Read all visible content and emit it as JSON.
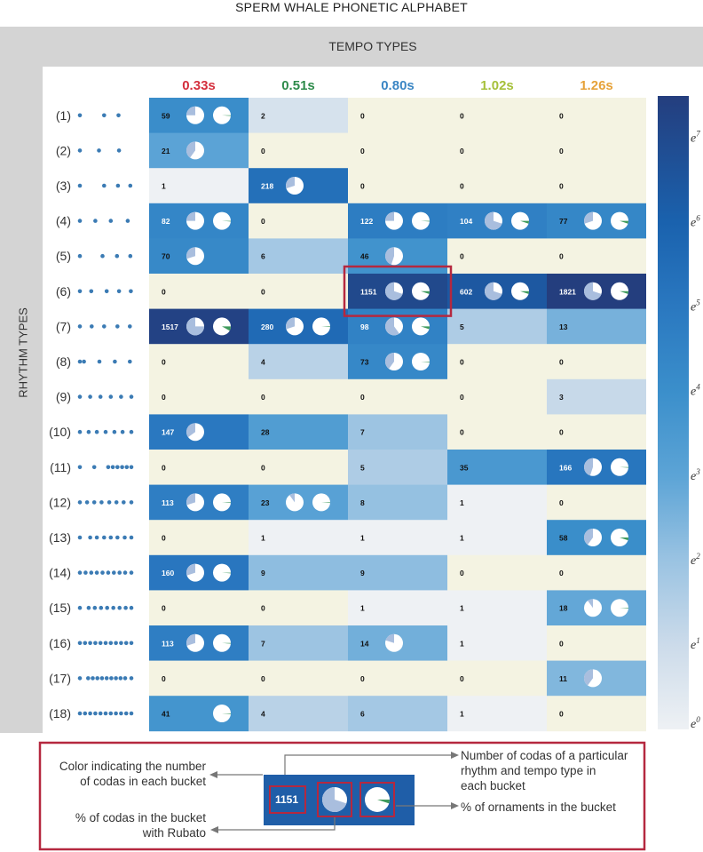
{
  "page_title": "SPERM WHALE PHONETIC ALPHABET",
  "colors": {
    "background_panel": "#d4d4d4",
    "empty_cell": "#f4f3e2",
    "highlight_box": "#b5283f",
    "dot": "#3b7bb4",
    "pie_fill": "#a9bede",
    "pie_ornament": "#3e9a5c"
  },
  "chart_data": {
    "type": "heatmap",
    "title": "SPERM WHALE PHONETIC ALPHABET",
    "x_axis_title": "TEMPO TYPES",
    "y_axis_title": "RHYTHM TYPES",
    "columns": [
      {
        "label": "0.33s",
        "color": "#d42f3d"
      },
      {
        "label": "0.51s",
        "color": "#2e8b4b"
      },
      {
        "label": "0.80s",
        "color": "#3b86c4"
      },
      {
        "label": "1.02s",
        "color": "#a6c03a"
      },
      {
        "label": "1.26s",
        "color": "#e6a23a"
      }
    ],
    "rows": [
      {
        "label": "(1)",
        "dots": [
          0,
          0.47,
          0.75
        ]
      },
      {
        "label": "(2)",
        "dots": [
          0,
          0.37,
          0.76
        ]
      },
      {
        "label": "(3)",
        "dots": [
          0,
          0.47,
          0.74,
          0.98
        ]
      },
      {
        "label": "(4)",
        "dots": [
          0,
          0.3,
          0.6,
          0.93
        ]
      },
      {
        "label": "(5)",
        "dots": [
          0,
          0.44,
          0.72,
          0.98
        ]
      },
      {
        "label": "(6)",
        "dots": [
          0,
          0.22,
          0.52,
          0.76,
          0.99
        ]
      },
      {
        "label": "(7)",
        "dots": [
          0,
          0.23,
          0.47,
          0.73,
          0.97
        ]
      },
      {
        "label": "(8)",
        "dots": [
          0,
          0.08,
          0.38,
          0.68,
          0.97
        ]
      },
      {
        "label": "(9)",
        "dots": [
          0,
          0.2,
          0.4,
          0.6,
          0.8,
          1.0
        ]
      },
      {
        "label": "(10)",
        "dots": [
          0,
          0.17,
          0.33,
          0.5,
          0.67,
          0.83,
          1.0
        ]
      },
      {
        "label": "(11)",
        "dots": [
          0,
          0.28,
          0.55,
          0.64,
          0.73,
          0.82,
          0.91,
          1.0
        ]
      },
      {
        "label": "(12)",
        "dots": [
          0,
          0.14,
          0.28,
          0.42,
          0.57,
          0.71,
          0.85,
          1.0
        ]
      },
      {
        "label": "(13)",
        "dots": [
          0,
          0.2,
          0.33,
          0.47,
          0.6,
          0.73,
          0.87,
          1.0
        ]
      },
      {
        "label": "(14)",
        "dots": [
          0,
          0.11,
          0.22,
          0.33,
          0.44,
          0.55,
          0.66,
          0.77,
          0.88,
          1.0
        ]
      },
      {
        "label": "(15)",
        "dots": [
          0,
          0.17,
          0.29,
          0.41,
          0.53,
          0.65,
          0.77,
          0.89,
          1.0
        ]
      },
      {
        "label": "(16)",
        "dots": [
          0,
          0.1,
          0.2,
          0.3,
          0.4,
          0.5,
          0.6,
          0.7,
          0.8,
          0.9,
          1.0
        ]
      },
      {
        "label": "(17)",
        "dots": [
          0,
          0.16,
          0.25,
          0.34,
          0.43,
          0.52,
          0.61,
          0.7,
          0.79,
          0.88,
          1.0
        ]
      },
      {
        "label": "(18)",
        "dots": [
          0,
          0.1,
          0.2,
          0.3,
          0.4,
          0.5,
          0.6,
          0.7,
          0.8,
          0.9,
          1.0
        ]
      }
    ],
    "counts": [
      [
        59,
        2,
        0,
        0,
        0
      ],
      [
        21,
        0,
        0,
        0,
        0
      ],
      [
        1,
        218,
        0,
        0,
        0
      ],
      [
        82,
        0,
        122,
        104,
        77
      ],
      [
        70,
        6,
        46,
        0,
        0
      ],
      [
        0,
        0,
        1151,
        602,
        1821
      ],
      [
        1517,
        280,
        98,
        5,
        13
      ],
      [
        0,
        4,
        73,
        0,
        0
      ],
      [
        0,
        0,
        0,
        0,
        3
      ],
      [
        147,
        28,
        7,
        0,
        0
      ],
      [
        0,
        0,
        5,
        35,
        166
      ],
      [
        113,
        23,
        8,
        1,
        0
      ],
      [
        0,
        1,
        1,
        1,
        58
      ],
      [
        160,
        9,
        9,
        0,
        0
      ],
      [
        0,
        0,
        1,
        1,
        18
      ],
      [
        113,
        7,
        14,
        1,
        0
      ],
      [
        0,
        0,
        0,
        0,
        11
      ],
      [
        41,
        4,
        6,
        1,
        0
      ]
    ],
    "pies": [
      {
        "row": 0,
        "col": 0,
        "rubato": 0.25,
        "ornament": 0
      },
      {
        "row": 1,
        "col": 0,
        "rubato": 0.4
      },
      {
        "row": 2,
        "col": 1,
        "rubato": 0.3
      },
      {
        "row": 3,
        "col": 0,
        "rubato": 0.25,
        "ornament": 0
      },
      {
        "row": 3,
        "col": 2,
        "rubato": 0.25,
        "ornament": 0
      },
      {
        "row": 3,
        "col": 3,
        "rubato": 0.7,
        "ornament": 0.05
      },
      {
        "row": 3,
        "col": 4,
        "rubato": 0.3,
        "ornament": 0.05
      },
      {
        "row": 4,
        "col": 0,
        "rubato": 0.3
      },
      {
        "row": 4,
        "col": 2,
        "rubato": 0.45
      },
      {
        "row": 5,
        "col": 2,
        "rubato": 0.7,
        "ornament": 0.05
      },
      {
        "row": 5,
        "col": 3,
        "rubato": 0.7,
        "ornament": 0.05
      },
      {
        "row": 5,
        "col": 4,
        "rubato": 0.7,
        "ornament": 0.05
      },
      {
        "row": 6,
        "col": 0,
        "rubato": 0.75,
        "ornament": 0.08
      },
      {
        "row": 6,
        "col": 1,
        "rubato": 0.3,
        "ornament": 0
      },
      {
        "row": 6,
        "col": 2,
        "rubato": 0.6,
        "ornament": 0.05
      },
      {
        "row": 7,
        "col": 2,
        "rubato": 0.4,
        "ornament": 0
      },
      {
        "row": 9,
        "col": 0,
        "rubato": 0.35
      },
      {
        "row": 10,
        "col": 4,
        "rubato": 0.45,
        "ornament": 0
      },
      {
        "row": 11,
        "col": 0,
        "rubato": 0.3,
        "ornament": 0
      },
      {
        "row": 11,
        "col": 1,
        "rubato": 0.1,
        "ornament": 0
      },
      {
        "row": 12,
        "col": 4,
        "rubato": 0.4,
        "ornament": 0.05
      },
      {
        "row": 13,
        "col": 0,
        "rubato": 0.3,
        "ornament": 0
      },
      {
        "row": 14,
        "col": 4,
        "rubato": 0.1,
        "ornament": 0
      },
      {
        "row": 15,
        "col": 0,
        "rubato": 0.3,
        "ornament": 0
      },
      {
        "row": 15,
        "col": 2,
        "rubato": 0.2
      },
      {
        "row": 16,
        "col": 4,
        "rubato": 0.4
      },
      {
        "row": 17,
        "col": 0,
        "ornament": 0
      }
    ],
    "highlight": {
      "row": 5,
      "col": 2
    },
    "colorbar": {
      "scale": "log (base e)",
      "ticks": [
        "e",
        "e",
        "e",
        "e",
        "e",
        "e",
        "e",
        "e"
      ],
      "tick_exponents": [
        "0",
        "1",
        "2",
        "3",
        "4",
        "5",
        "6",
        "7"
      ],
      "range": [
        0,
        7.5
      ],
      "low_color": "#eef1f4",
      "high_color": "#243e7e"
    }
  },
  "legend": {
    "sample_count": "1151",
    "annotation_color": "Color indicating the number of codas in each bucket",
    "annotation_color_lines": [
      "Color indicating the number",
      "of codas in each bucket"
    ],
    "annotation_count_lines": [
      "Number of codas of a particular",
      "rhythm and tempo type in",
      "each bucket"
    ],
    "annotation_rubato_lines": [
      "% of codas in the bucket",
      "with Rubato"
    ],
    "annotation_ornaments": "% of ornaments in the bucket"
  }
}
